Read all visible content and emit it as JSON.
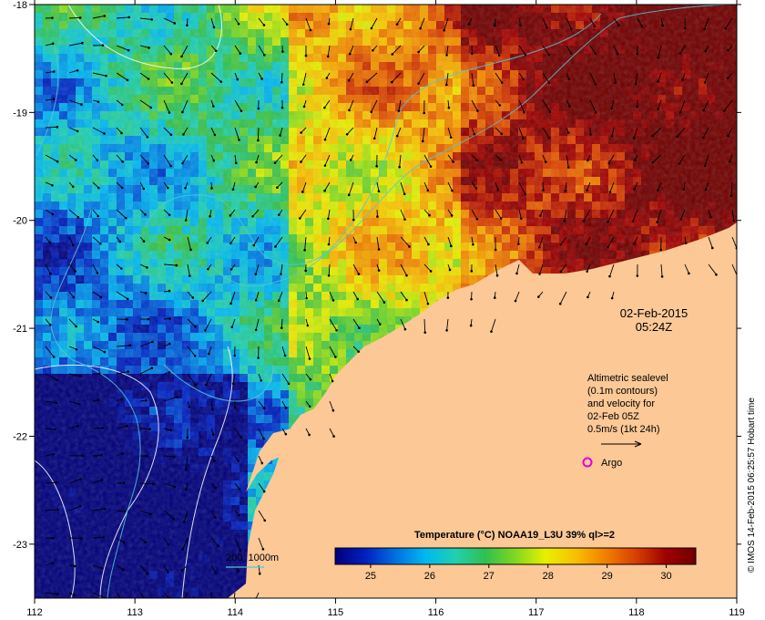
{
  "map": {
    "lon_ticks": [
      "112",
      "113",
      "114",
      "115",
      "116",
      "117",
      "118",
      "119"
    ],
    "lat_ticks": [
      "-18",
      "-19",
      "-20",
      "-21",
      "-22",
      "-23"
    ],
    "date_label": "02-Feb-2015",
    "time_label": "05:24Z",
    "altimetry_note": [
      "Altimetric sealevel",
      "(0.1m contours)",
      "and velocity for",
      "02-Feb 05Z",
      "0.5m/s (1kt 24h)"
    ],
    "argo_label": "Argo",
    "depth_legend": "200  1000m",
    "colorbar_title": "Temperature (°C) NOAA19_L3U 39% ql>=2",
    "colorbar_ticks": [
      "25",
      "26",
      "27",
      "28",
      "29",
      "30"
    ],
    "credit": "© IMOS 14-Feb-2015 06:25:57 Hobart time",
    "colors": {
      "land": "#fbc896",
      "argo_marker": "#e000e0",
      "bathy_contour": "#50c8d8",
      "sealevel_contour": "#ffffff"
    },
    "colormap": [
      "#00007a",
      "#0020c0",
      "#0070e0",
      "#00b8f0",
      "#20d0b0",
      "#30c050",
      "#80d820",
      "#e8f000",
      "#f8c000",
      "#f08000",
      "#d84000",
      "#a00000",
      "#700000"
    ],
    "colorbar_range": [
      24.4,
      30.5
    ],
    "lon_range": [
      112,
      119
    ],
    "lat_range": [
      -23.5,
      -18
    ]
  }
}
